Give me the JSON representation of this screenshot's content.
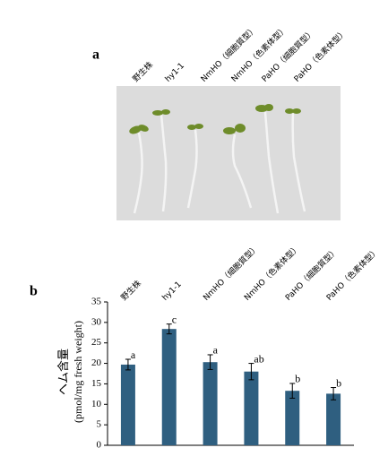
{
  "panel_a": {
    "label": "a",
    "labels": [
      "野生株",
      "hy1-1",
      "NmHO（細胞質型）",
      "NmHO（色素体型）",
      "PaHO（細胞質型）",
      "PaHO（色素体型）"
    ]
  },
  "chart_data": {
    "type": "bar",
    "panel_label": "b",
    "ylabel": "ヘム含量",
    "ylabel_unit": "(pmol/mg fresh weight)",
    "categories": [
      "野生株",
      "hy1-1",
      "NmHO（細胞質型）",
      "NmHO（色素体型）",
      "PaHO（細胞質型）",
      "PaHO（色素体型）"
    ],
    "values": [
      19.7,
      28.4,
      20.3,
      18,
      13.3,
      12.6
    ],
    "errors": [
      1.3,
      1.2,
      1.8,
      2,
      1.8,
      1.5
    ],
    "annotations": [
      "a",
      "c",
      "a",
      "ab",
      "b",
      "b"
    ],
    "color": "#2f5f80",
    "ylim": [
      0,
      35
    ],
    "yticks": [
      0,
      5,
      10,
      15,
      20,
      25,
      30,
      35
    ]
  }
}
